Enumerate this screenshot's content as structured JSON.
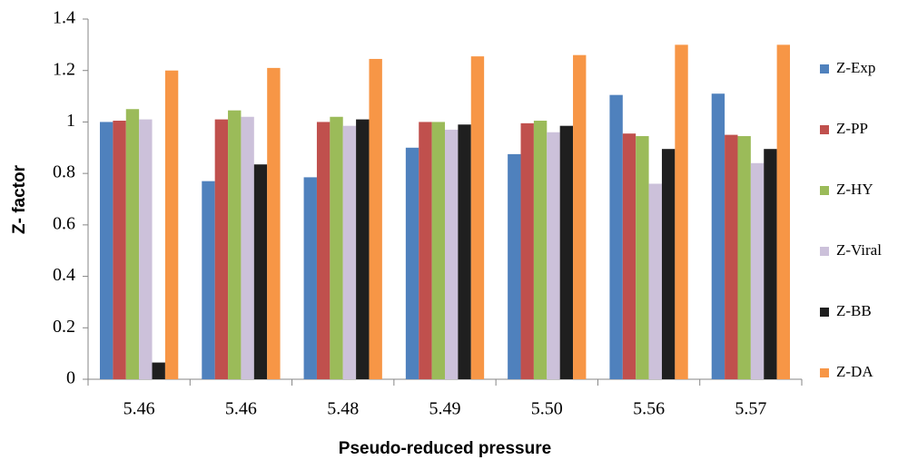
{
  "chart_data": {
    "type": "bar",
    "x_label": "Pseudo-reduced pressure",
    "y_label": "Z- factor",
    "categories": [
      "5.46",
      "5.46",
      "5.48",
      "5.49",
      "5.50",
      "5.56",
      "5.57"
    ],
    "series": [
      {
        "name": "Z-Exp",
        "color": "#4f81bd",
        "values": [
          1.0,
          0.77,
          0.785,
          0.9,
          0.875,
          1.105,
          1.11
        ]
      },
      {
        "name": "Z-PP",
        "color": "#c0504d",
        "values": [
          1.005,
          1.01,
          1.0,
          1.0,
          0.995,
          0.955,
          0.95
        ]
      },
      {
        "name": "Z-HY",
        "color": "#9bbb59",
        "values": [
          1.05,
          1.045,
          1.02,
          1.0,
          1.005,
          0.945,
          0.945
        ]
      },
      {
        "name": "Z-Viral",
        "color": "#ccc1da",
        "values": [
          1.01,
          1.02,
          0.985,
          0.97,
          0.96,
          0.76,
          0.84
        ]
      },
      {
        "name": "Z-BB",
        "color": "#1f1f1f",
        "values": [
          0.065,
          0.835,
          1.01,
          0.99,
          0.985,
          0.895,
          0.895
        ]
      },
      {
        "name": "Z-DA",
        "color": "#f79646",
        "values": [
          1.2,
          1.21,
          1.245,
          1.255,
          1.26,
          1.3,
          1.3
        ]
      }
    ],
    "ylim": [
      0,
      1.4
    ],
    "yticks": [
      0,
      0.2,
      0.4,
      0.6,
      0.8,
      1,
      1.2,
      1.4
    ],
    "grid": false,
    "legend": "right"
  }
}
